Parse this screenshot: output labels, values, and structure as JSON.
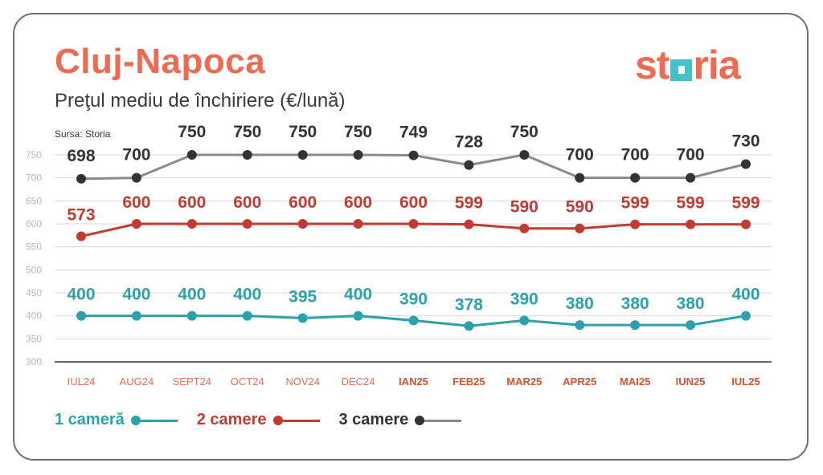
{
  "header": {
    "title": "Cluj-Napoca",
    "subtitle": "Preţul mediu de închiriere (€/lună)",
    "source": "Sursa: Storia",
    "logo_prefix": "st",
    "logo_suffix": "ria"
  },
  "colors": {
    "title": "#ee6a52",
    "one_room": "#2ba2ab",
    "two_rooms": "#c23b32",
    "three_rooms": "#333333",
    "three_rooms_line": "#8a8a8a",
    "tick_2024": "#ee6a52",
    "tick_2025": "#d9502e",
    "grid": "#d9d9d9"
  },
  "legend": [
    {
      "label": "1 cameră",
      "color": "#2ba2ab",
      "dot": "#2ba2ab"
    },
    {
      "label": "2 camere",
      "color": "#c23b32",
      "dot": "#c23b32"
    },
    {
      "label": "3 camere",
      "color": "#333333",
      "dot": "#333333",
      "line": "#8a8a8a"
    }
  ],
  "chart_data": {
    "type": "line",
    "title": "Preţul mediu de închiriere (€/lună)",
    "x": [
      "IUL24",
      "AUG24",
      "SEPT24",
      "OCT24",
      "NOV24",
      "DEC24",
      "IAN25",
      "FEB25",
      "MAR25",
      "APR25",
      "MAI25",
      "IUN25",
      "IUL25"
    ],
    "bold_ticks": [
      "IAN25",
      "FEB25",
      "MAR25",
      "APR25",
      "MAI25",
      "IUN25",
      "IUL25"
    ],
    "y_ticks": [
      300,
      350,
      400,
      450,
      500,
      550,
      600,
      650,
      700,
      750
    ],
    "ylim": [
      300,
      750
    ],
    "grid": true,
    "legend_position": "bottom-left",
    "data_labels": true,
    "series": [
      {
        "name": "1 cameră",
        "key": "one_room",
        "values": [
          400,
          400,
          400,
          400,
          395,
          400,
          390,
          378,
          390,
          380,
          380,
          380,
          400
        ]
      },
      {
        "name": "2 camere",
        "key": "two_rooms",
        "values": [
          573,
          600,
          600,
          600,
          600,
          600,
          600,
          599,
          590,
          590,
          599,
          599,
          599
        ]
      },
      {
        "name": "3 camere",
        "key": "three_rooms",
        "values": [
          698,
          700,
          750,
          750,
          750,
          750,
          749,
          728,
          750,
          700,
          700,
          700,
          730
        ]
      }
    ]
  }
}
